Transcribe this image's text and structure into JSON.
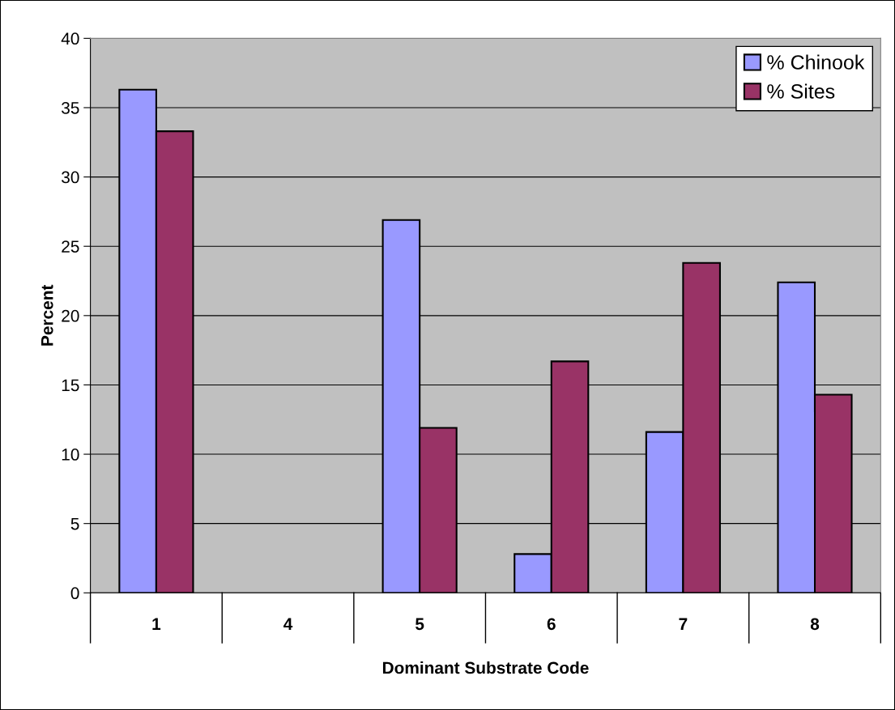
{
  "chart_data": {
    "type": "bar",
    "xlabel": "Dominant Substrate Code",
    "ylabel": "Percent",
    "categories": [
      "1",
      "4",
      "5",
      "6",
      "7",
      "8"
    ],
    "series": [
      {
        "name": "% Chinook",
        "color": "#9999ff",
        "values": [
          36.3,
          0,
          26.9,
          2.8,
          11.6,
          22.4
        ]
      },
      {
        "name": "% Sites",
        "color": "#993366",
        "values": [
          33.3,
          0,
          11.9,
          16.7,
          23.8,
          14.3
        ]
      }
    ],
    "ylim": [
      0,
      40
    ],
    "yticks": [
      0,
      5,
      10,
      15,
      20,
      25,
      30,
      35,
      40
    ],
    "grid": "y",
    "legend": "top right"
  }
}
